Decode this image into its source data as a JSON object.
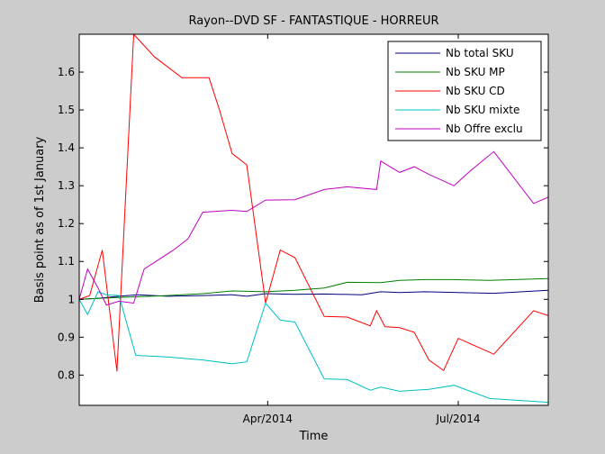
{
  "chart_data": {
    "type": "line",
    "title": "Rayon--DVD SF - FANTASTIQUE - HORREUR",
    "xlabel": "Time",
    "ylabel": "Basis point as of 1st January",
    "x_range": [
      "2014-01-01",
      "2014-08-13"
    ],
    "ylim": [
      0.72,
      1.7
    ],
    "yticks": [
      0.8,
      0.9,
      1,
      1.1,
      1.2,
      1.3,
      1.4,
      1.5,
      1.6
    ],
    "ytick_labels": [
      "0.8",
      "0.9",
      "1",
      "1.1",
      "1.2",
      "1.3",
      "1.4",
      "1.5",
      "1.6"
    ],
    "xticks": [
      "2014-04-01",
      "2014-07-01"
    ],
    "xtick_labels": [
      "Apr/2014",
      "Jul/2014"
    ],
    "grid": false,
    "legend_position": "top-right",
    "series": [
      {
        "name": "Nb total SKU",
        "color": "#00007f",
        "x": [
          "2014-01-01",
          "2014-01-09",
          "2014-01-14",
          "2014-01-20",
          "2014-01-29",
          "2014-02-12",
          "2014-03-01",
          "2014-03-15",
          "2014-03-22",
          "2014-03-31",
          "2014-04-14",
          "2014-04-28",
          "2014-05-16",
          "2014-05-25",
          "2014-06-03",
          "2014-06-15",
          "2014-07-01",
          "2014-07-18",
          "2014-08-13"
        ],
        "values": [
          1.0,
          1.002,
          1.005,
          1.008,
          1.012,
          1.008,
          1.01,
          1.012,
          1.008,
          1.015,
          1.013,
          1.014,
          1.012,
          1.02,
          1.018,
          1.02,
          1.018,
          1.016,
          1.024
        ]
      },
      {
        "name": "Nb SKU MP",
        "color": "#007f00",
        "x": [
          "2014-01-01",
          "2014-01-20",
          "2014-02-12",
          "2014-03-01",
          "2014-03-15",
          "2014-03-31",
          "2014-04-14",
          "2014-04-28",
          "2014-05-09",
          "2014-05-25",
          "2014-06-03",
          "2014-06-15",
          "2014-06-29",
          "2014-07-16",
          "2014-08-13"
        ],
        "values": [
          1.0,
          1.005,
          1.01,
          1.015,
          1.022,
          1.02,
          1.024,
          1.03,
          1.045,
          1.044,
          1.05,
          1.052,
          1.052,
          1.05,
          1.055
        ]
      },
      {
        "name": "Nb SKU CD",
        "color": "#ff0000",
        "x": [
          "2014-01-01",
          "2014-01-06",
          "2014-01-12",
          "2014-01-19",
          "2014-01-27",
          "2014-02-06",
          "2014-02-19",
          "2014-03-04",
          "2014-03-09",
          "2014-03-15",
          "2014-03-22",
          "2014-03-31",
          "2014-04-07",
          "2014-04-14",
          "2014-04-28",
          "2014-05-09",
          "2014-05-20",
          "2014-05-23",
          "2014-05-27",
          "2014-06-03",
          "2014-06-10",
          "2014-06-17",
          "2014-06-24",
          "2014-07-01",
          "2014-07-18",
          "2014-08-06",
          "2014-08-13"
        ],
        "values": [
          1.0,
          1.01,
          1.13,
          0.81,
          1.7,
          1.64,
          1.585,
          1.585,
          1.5,
          1.385,
          1.355,
          0.99,
          1.13,
          1.11,
          0.955,
          0.953,
          0.93,
          0.97,
          0.928,
          0.925,
          0.913,
          0.84,
          0.812,
          0.897,
          0.855,
          0.97,
          0.957
        ]
      },
      {
        "name": "Nb SKU mixte",
        "color": "#00bfbf",
        "x": [
          "2014-01-01",
          "2014-01-05",
          "2014-01-10",
          "2014-01-14",
          "2014-01-20",
          "2014-01-28",
          "2014-02-12",
          "2014-03-01",
          "2014-03-15",
          "2014-03-22",
          "2014-03-31",
          "2014-04-07",
          "2014-04-14",
          "2014-04-28",
          "2014-05-09",
          "2014-05-20",
          "2014-05-25",
          "2014-06-03",
          "2014-06-10",
          "2014-06-17",
          "2014-06-29",
          "2014-07-16",
          "2014-08-13"
        ],
        "values": [
          1.0,
          0.96,
          1.02,
          1.012,
          1.01,
          0.852,
          0.848,
          0.84,
          0.83,
          0.835,
          0.99,
          0.945,
          0.94,
          0.79,
          0.788,
          0.76,
          0.768,
          0.757,
          0.76,
          0.762,
          0.773,
          0.738,
          0.728
        ]
      },
      {
        "name": "Nb Offre exclu",
        "color": "#bf00bf",
        "x": [
          "2014-01-01",
          "2014-01-05",
          "2014-01-10",
          "2014-01-14",
          "2014-01-20",
          "2014-01-27",
          "2014-02-01",
          "2014-02-15",
          "2014-02-22",
          "2014-03-01",
          "2014-03-15",
          "2014-03-22",
          "2014-03-31",
          "2014-04-14",
          "2014-04-28",
          "2014-05-09",
          "2014-05-23",
          "2014-05-25",
          "2014-06-03",
          "2014-06-10",
          "2014-06-17",
          "2014-06-29",
          "2014-07-07",
          "2014-07-18",
          "2014-08-06",
          "2014-08-13"
        ],
        "values": [
          1.0,
          1.08,
          1.03,
          0.985,
          0.995,
          0.99,
          1.08,
          1.13,
          1.16,
          1.23,
          1.235,
          1.232,
          1.262,
          1.263,
          1.29,
          1.297,
          1.29,
          1.365,
          1.335,
          1.35,
          1.33,
          1.3,
          1.34,
          1.39,
          1.253,
          1.27
        ]
      }
    ]
  }
}
